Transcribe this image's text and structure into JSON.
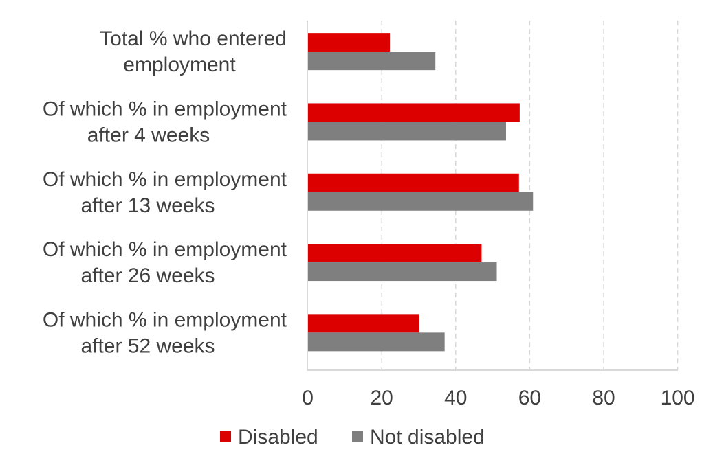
{
  "chart_data": {
    "type": "bar",
    "orientation": "horizontal",
    "categories": [
      [
        "Total % who entered",
        "employment"
      ],
      [
        "Of which % in employment",
        "after 4 weeks"
      ],
      [
        "Of which % in employment",
        "after 13 weeks"
      ],
      [
        "Of which % in employment",
        "after 26 weeks"
      ],
      [
        "Of which % in employment",
        "after 52 weeks"
      ]
    ],
    "series": [
      {
        "name": "Disabled",
        "color": "#dc0000",
        "values": [
          22.2,
          57.3,
          57.1,
          47.0,
          30.2
        ]
      },
      {
        "name": "Not disabled",
        "color": "#7f7f7f",
        "values": [
          34.5,
          53.6,
          60.9,
          51.1,
          37.0
        ]
      }
    ],
    "xlim": [
      0,
      100
    ],
    "xticks": [
      "0",
      "20",
      "40",
      "60",
      "80",
      "100"
    ],
    "grid": "vertical dashed",
    "legend": "bottom",
    "title": "",
    "xlabel": "",
    "ylabel": ""
  }
}
